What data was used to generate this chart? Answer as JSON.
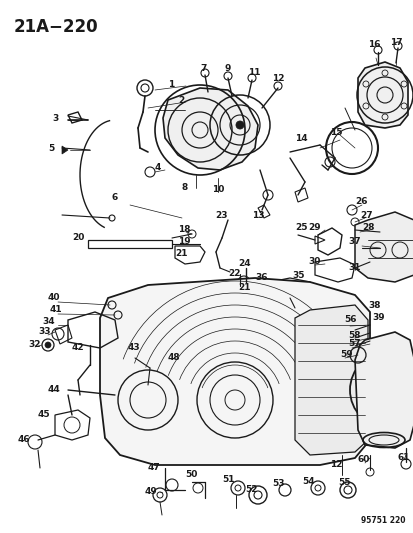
{
  "title": "21A−220",
  "bg": "#ffffff",
  "lc": "#1a1a1a",
  "part_num": "95751 220",
  "figsize": [
    4.14,
    5.33
  ],
  "dpi": 100
}
